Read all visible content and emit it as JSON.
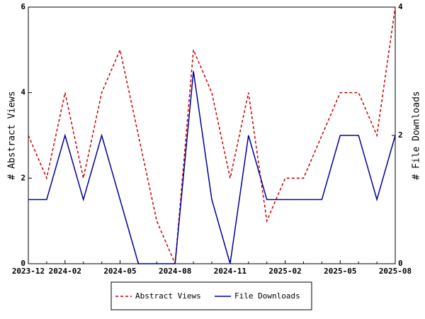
{
  "chart_data": {
    "type": "line",
    "categories": [
      "2023-12",
      null,
      "2024-02",
      null,
      null,
      "2024-05",
      null,
      null,
      "2024-08",
      null,
      null,
      "2024-11",
      null,
      null,
      "2025-02",
      null,
      null,
      "2025-05",
      null,
      null,
      "2025-08"
    ],
    "y_label": "# Abstract Views",
    "y2_label": "# File Downloads",
    "ylim": [
      0,
      6
    ],
    "yticks": [
      0,
      2,
      4,
      6
    ],
    "y2lim": [
      0,
      4
    ],
    "y2ticks": [
      0,
      2,
      4
    ],
    "series": [
      {
        "name": "Abstract Views",
        "color": "#cc0000",
        "dash": true,
        "values": [
          3,
          2,
          4,
          2,
          4,
          5,
          3,
          1,
          0,
          5,
          4,
          2,
          4,
          1,
          2,
          2,
          3,
          4,
          4,
          3,
          6
        ]
      },
      {
        "name": "File Downloads",
        "color": "#000099",
        "axis": "y2",
        "values": [
          1,
          1,
          2,
          1,
          2,
          1,
          0,
          0,
          0,
          3,
          1,
          0,
          2,
          1,
          1,
          1,
          1,
          2,
          2,
          1,
          2
        ]
      }
    ]
  }
}
